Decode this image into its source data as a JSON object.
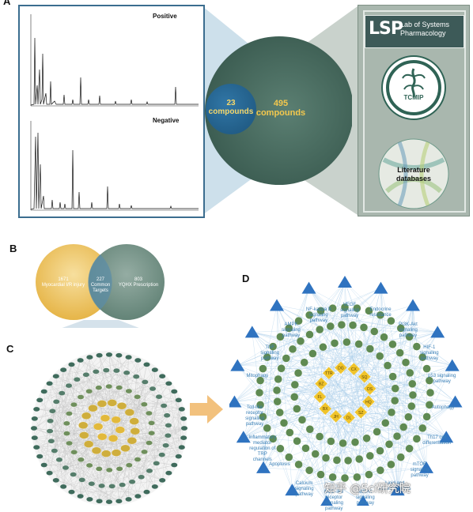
{
  "panels": {
    "a": "A",
    "b": "B",
    "c": "C",
    "d": "D"
  },
  "panel_a": {
    "positive_label": "Positive",
    "negative_label": "Negative",
    "small_circle_count": "23",
    "small_circle_unit": "compounds",
    "big_circle_count": "495",
    "big_circle_unit": "compounds",
    "lsp_letters": "LSP",
    "lsp_line1": "Lab of Systems",
    "lsp_line2": "Pharmacology",
    "tcmip_label": "TCMIP",
    "literature_line1": "Literature",
    "literature_line2": "databases"
  },
  "panel_b": {
    "left_count": "1671",
    "left_label": "Myocardial I/R injury",
    "middle_count": "227",
    "middle_line1": "Common",
    "middle_line2": "Targets",
    "right_count": "803",
    "right_label": "YQHX Prescription"
  },
  "panel_d": {
    "pathways": [
      {
        "text": "VEGF\nsignaling\npathway"
      },
      {
        "text": "Endocrine\nresistance"
      },
      {
        "text": "PI3K-Akt\nsignaling\npathway"
      },
      {
        "text": "HIF-1\nsignaling\npathway"
      },
      {
        "text": "p53 signaling\npathway"
      },
      {
        "text": "Autophagy -"
      },
      {
        "text": "Th17 cell\ndifferentiation"
      },
      {
        "text": "mTOR\nsignaling\npathway"
      },
      {
        "text": "Lipid and\natherosclerosis"
      },
      {
        "text": "MAPK\nsignaling\npathway"
      },
      {
        "text": "NOD-like\nreceptor\nsignaling\npathway"
      },
      {
        "text": "Calcium\nsignaling\npathway"
      },
      {
        "text": "Apoptosis"
      },
      {
        "text": "Inflammatory\nmediator\nregulation of\nTRP\nchannels"
      },
      {
        "text": "Toll-like\nreceptor\nsignaling\npathway"
      },
      {
        "text": "Mitophagy"
      },
      {
        "text": "TNF\nsignaling\npathway"
      },
      {
        "text": "AMPK\nsignaling\npathway"
      },
      {
        "text": "NF-kappa B\nsignaling\npathway"
      }
    ],
    "herbs": [
      "CX",
      "SQ",
      "DS",
      "HQ",
      "SZ",
      "DL",
      "JH",
      "BX",
      "FL",
      "BZ",
      "TTR",
      "DG"
    ]
  },
  "watermark": "知乎 @Sci研究院"
}
